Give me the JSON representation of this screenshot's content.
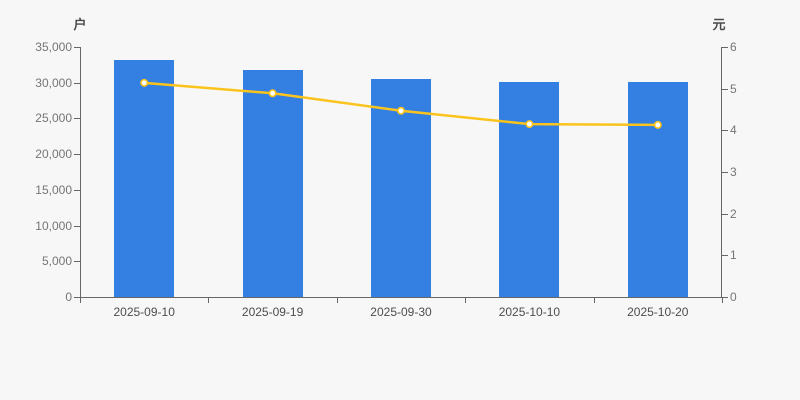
{
  "chart_data": {
    "type": "bar",
    "title": "",
    "categories": [
      "2025-09-10",
      "2025-09-19",
      "2025-09-30",
      "2025-10-10",
      "2025-10-20"
    ],
    "series": [
      {
        "name": "户",
        "type": "bar",
        "axis": "left",
        "values": [
          33200,
          31800,
          30500,
          30100,
          30100
        ],
        "color": "#337fe2"
      },
      {
        "name": "元",
        "type": "line",
        "axis": "right",
        "values": [
          5.14,
          4.89,
          4.47,
          4.15,
          4.13
        ],
        "color": "#fbc41c",
        "marker": "circle-empty",
        "marker_fill": "#ffffff"
      }
    ],
    "left_axis": {
      "label": "户",
      "min": 0,
      "max": 35000,
      "interval": 5000,
      "tick_labels": [
        "0",
        "5,000",
        "10,000",
        "15,000",
        "20,000",
        "25,000",
        "30,000",
        "35,000"
      ]
    },
    "right_axis": {
      "label": "元",
      "min": 0,
      "max": 6,
      "interval": 1,
      "tick_labels": [
        "0",
        "1",
        "2",
        "3",
        "4",
        "5",
        "6"
      ]
    },
    "grid": false,
    "legend": false,
    "background": "#f7f7f7",
    "axis_color": "#666666",
    "y_label_color": "#757575",
    "x_label_color": "#4d4d4d"
  }
}
